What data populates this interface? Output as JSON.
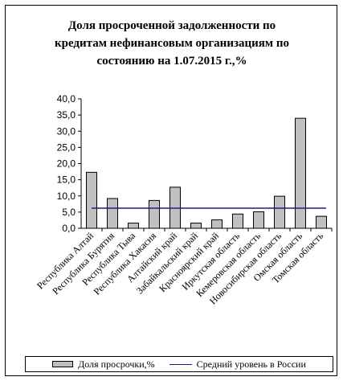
{
  "chart_data": {
    "type": "bar",
    "title": "Доля просроченной задолженности по кредитам нефинансовым организациям по состоянию на 1.07.2015 г.,%",
    "title_lines": [
      "Доля просроченной задолженности по",
      "кредитам нефинансовым организациям по",
      "состоянию на 1.07.2015 г.,%"
    ],
    "categories": [
      "Республика Алтай",
      "Республика Бурятия",
      "Республика Тыва",
      "Республика Хакасия",
      "Алтайский край",
      "Забайкальский край",
      "Красноярский край",
      "Иркутская область",
      "Кемеровская область",
      "Новосибирская область",
      "Омская область",
      "Томская область"
    ],
    "series": [
      {
        "name": "Доля просрочки,%",
        "values": [
          17.3,
          9.2,
          1.6,
          8.6,
          12.7,
          1.6,
          2.6,
          4.4,
          5.1,
          9.9,
          34.0,
          3.7
        ]
      }
    ],
    "reference_line": {
      "name": "Средний уровень в России",
      "value": 6.2
    },
    "ylim": [
      0,
      40
    ],
    "yticks": [
      "0,0",
      "5,0",
      "10,0",
      "15,0",
      "20,0",
      "25,0",
      "30,0",
      "35,0",
      "40,0"
    ],
    "legend_position": "bottom",
    "grid": false,
    "colors": {
      "bar": "#c0c0c0",
      "bar_edge": "#000000",
      "line": "#1f1f7a"
    }
  }
}
